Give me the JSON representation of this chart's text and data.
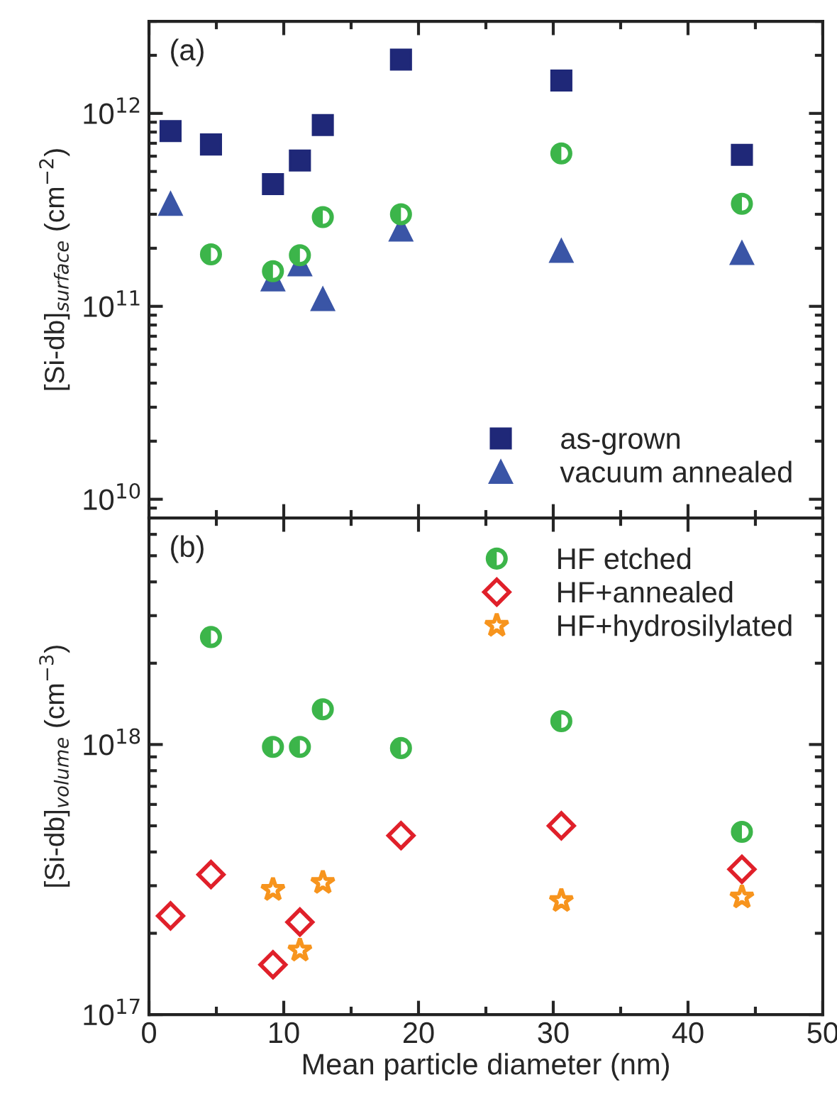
{
  "chart_data": [
    {
      "type": "scatter",
      "ylabel": "[Si-db]$_{surface}$ (cm$^{−2}$)",
      "annotations": [
        "(a)"
      ],
      "log": "y",
      "xlim": [
        0,
        50
      ],
      "xticks": [
        0,
        10,
        20,
        30,
        40,
        50
      ],
      "ylim": [
        8000000000.0,
        3000000000000.0
      ],
      "yticks": [
        {
          "value": 10000000000.0,
          "label": "10$^{10}$"
        },
        {
          "value": 100000000000.0,
          "label": "10$^{11}$"
        },
        {
          "value": 1000000000000.0,
          "label": "10$^{12}$"
        }
      ],
      "tick_labels": "y",
      "legend": "bottom right",
      "grid": false,
      "series": [
        {
          "name": "as-grown",
          "color": "#1f2878",
          "marker": "square",
          "x": [
            1.6,
            4.6,
            9.2,
            11.2,
            12.9,
            18.7,
            30.6,
            44.0
          ],
          "values": [
            810000000000.0,
            690000000000.0,
            430000000000.0,
            570000000000.0,
            870000000000.0,
            1900000000000.0,
            1480000000000.0,
            610000000000.0
          ]
        },
        {
          "name": "vacuum annealed",
          "color": "#3a55a6",
          "marker": "triangle",
          "x": [
            1.6,
            9.2,
            11.2,
            12.9,
            18.7,
            30.6,
            44.0
          ],
          "values": [
            340000000000.0,
            138000000000.0,
            165000000000.0,
            109000000000.0,
            250000000000.0,
            194000000000.0,
            189000000000.0
          ]
        },
        {
          "color": "#3cb54a",
          "marker": "circle",
          "x": [
            4.6,
            9.2,
            11.2,
            12.9,
            18.7,
            30.6,
            44.0
          ],
          "values": [
            186000000000.0,
            152000000000.0,
            184000000000.0,
            290000000000.0,
            300000000000.0,
            620000000000.0,
            340000000000.0
          ]
        }
      ]
    },
    {
      "type": "scatter",
      "xlabel": "Mean particle diameter (nm)",
      "ylabel": "[Si-db]$_{volume}$ (cm$^{−3}$)",
      "annotations": [
        "(b)"
      ],
      "log": "y",
      "xlim": [
        0,
        50
      ],
      "xticks": [
        0,
        10,
        20,
        30,
        40,
        50
      ],
      "ylim": [
        1e+17,
        6.9e+18
      ],
      "yticks": [
        {
          "value": 1e+17,
          "label": "10$^{17}$"
        },
        {
          "value": 1e+18,
          "label": "10$^{18}$"
        }
      ],
      "legend": "top right",
      "grid": false,
      "series": [
        {
          "name": "HF etched",
          "color": "#3cb54a",
          "marker": "circle",
          "x": [
            4.6,
            9.2,
            11.2,
            12.9,
            18.7,
            30.6,
            44.0
          ],
          "values": [
            2.5e+18,
            9.8e+17,
            9.8e+17,
            1.35e+18,
            9.7e+17,
            1.22e+18,
            4.75e+17
          ]
        },
        {
          "name": "HF+annealed",
          "color": "#e0202a",
          "marker": "diamond",
          "x": [
            1.6,
            4.6,
            9.2,
            11.2,
            18.7,
            30.6,
            44.0
          ],
          "values": [
            2.32e+17,
            3.3e+17,
            1.53e+17,
            2.2e+17,
            4.6e+17,
            5e+17,
            3.45e+17
          ]
        },
        {
          "name": "HF+hydrosilylated",
          "color": "#f7941d",
          "marker": "star",
          "x": [
            9.2,
            11.2,
            12.9,
            30.6,
            44.0
          ],
          "values": [
            2.9e+17,
            1.73e+17,
            3.08e+17,
            2.64e+17,
            2.72e+17
          ]
        }
      ]
    }
  ]
}
